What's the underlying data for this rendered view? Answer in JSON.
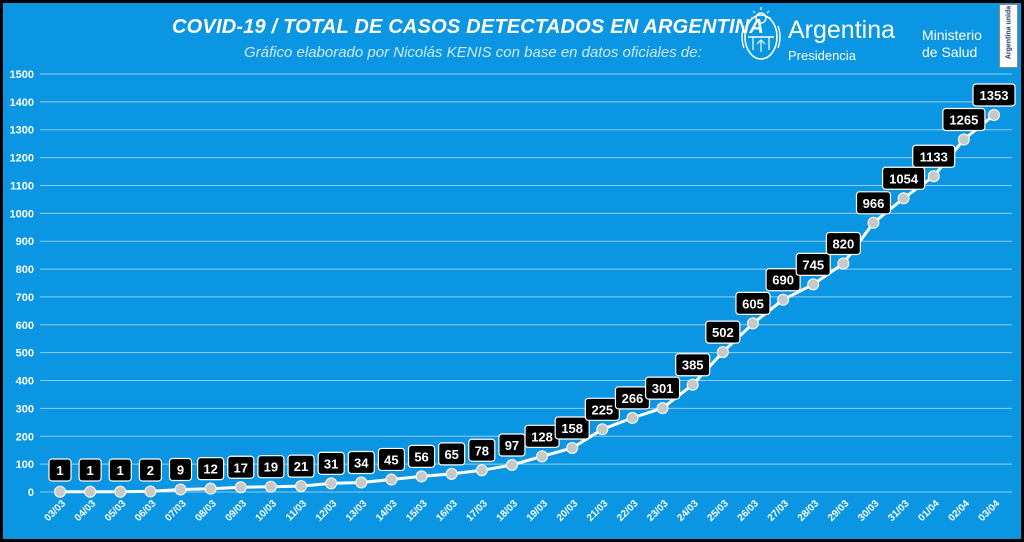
{
  "header": {
    "title": "COVID-19  /  TOTAL DE CASOS DETECTADOS EN ARGENTINA",
    "subtitle": "Gráfico elaborado por Nicolás KENIS con base en datos oficiales de:"
  },
  "logos": {
    "argentina_name": "Argentina",
    "argentina_sub": "Presidencia",
    "ministerio_line1": "Ministerio",
    "ministerio_line2": "de Salud",
    "badge_text": "Argentina unida"
  },
  "colors": {
    "background": "#0b96e3",
    "line": "#ffffff",
    "marker": "#c8c8c8",
    "label_box": "#000000",
    "label_text": "#ffffff"
  },
  "chart_data": {
    "type": "line",
    "title": "COVID-19  /  TOTAL DE CASOS DETECTADOS EN ARGENTINA",
    "xlabel": "",
    "ylabel": "",
    "ylim": [
      0,
      1500
    ],
    "yticks": [
      0,
      100,
      200,
      300,
      400,
      500,
      600,
      700,
      800,
      900,
      1000,
      1100,
      1200,
      1300,
      1400,
      1500
    ],
    "grid": true,
    "categories": [
      "03/03",
      "04/03",
      "05/03",
      "06/03",
      "07/03",
      "08/03",
      "09/03",
      "10/03",
      "11/03",
      "12/03",
      "13/03",
      "14/03",
      "15/03",
      "16/03",
      "17/03",
      "18/03",
      "19/03",
      "20/03",
      "21/03",
      "22/03",
      "23/03",
      "24/03",
      "25/03",
      "26/03",
      "27/03",
      "28/03",
      "29/03",
      "30/03",
      "31/03",
      "01/04",
      "02/04",
      "03/04"
    ],
    "values": [
      1,
      1,
      1,
      2,
      9,
      12,
      17,
      19,
      21,
      31,
      34,
      45,
      56,
      65,
      78,
      97,
      128,
      158,
      225,
      266,
      301,
      385,
      502,
      605,
      690,
      745,
      820,
      966,
      1054,
      1133,
      1265,
      1353
    ]
  }
}
